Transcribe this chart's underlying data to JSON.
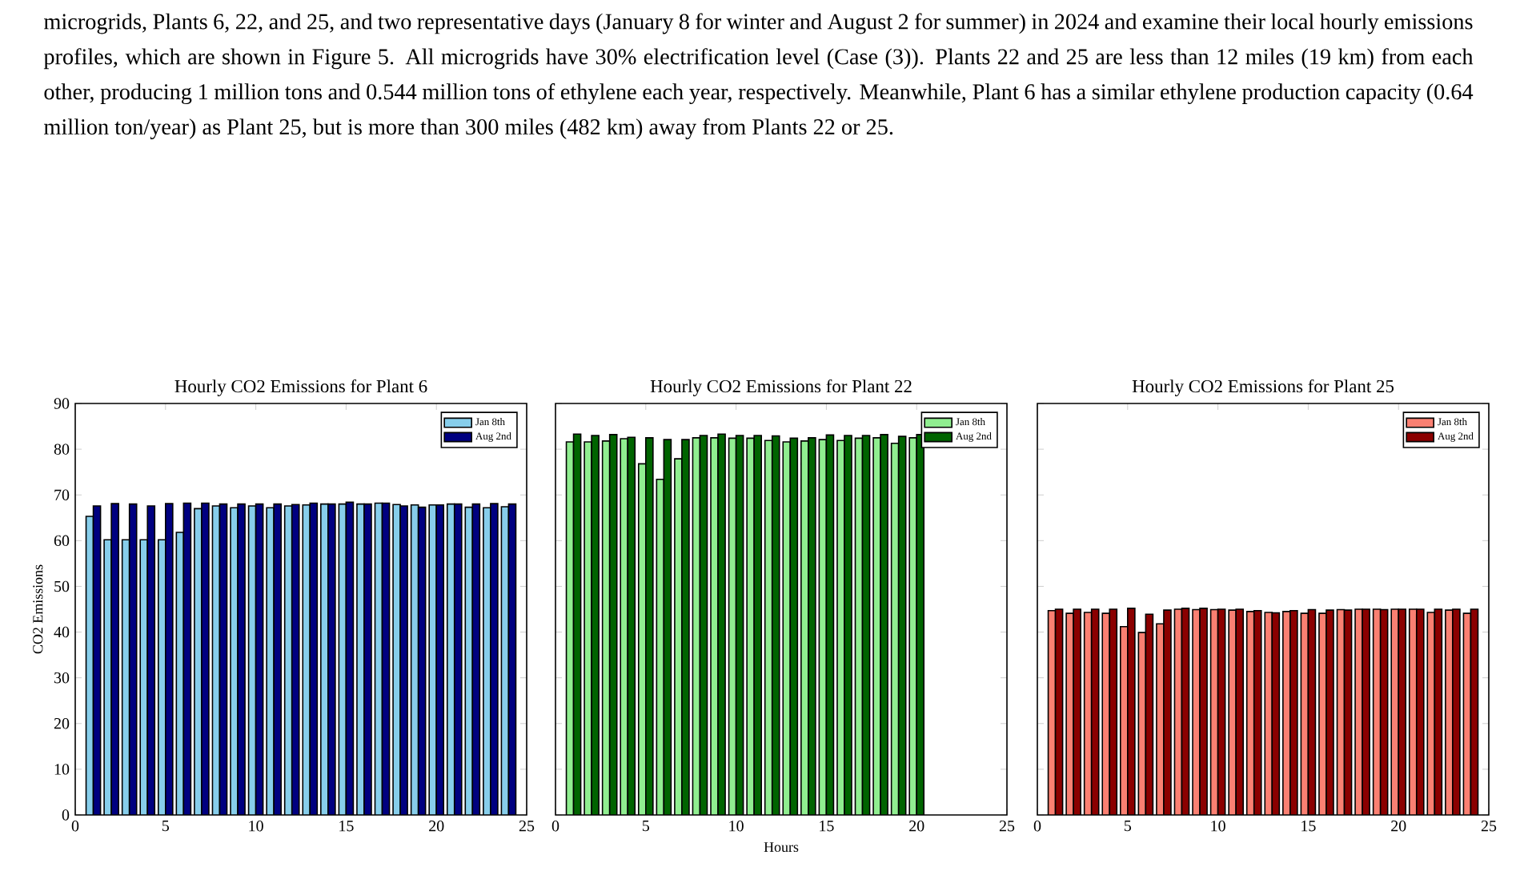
{
  "chart_data": [
    {
      "type": "bar",
      "title": "Hourly CO2 Emissions for Plant 6",
      "ylabel": "CO2 Emissions",
      "annotations": [
        "microgrids, Plants 6, 22, and 25, and two representative days (January 8 for winter and August 2 for summer) in 2024 and examine their local hourly emissions profiles, which are shown in Figure 5. All microgrids have 30% electrification level (Case (3)). Plants 22 and 25 are less than 12 miles (19 km) from each other, producing 1 million tons and 0.544 million tons of ethylene each year, respectively. Meanwhile, Plant 6 has a similar ethylene production capacity (0.64 million ton/year) as Plant 25, but is more than 300 miles (482 km) away from Plants 22 or 25."
      ],
      "x": [
        1,
        2,
        3,
        4,
        5,
        6,
        7,
        8,
        9,
        10,
        11,
        12,
        13,
        14,
        15,
        16,
        17,
        18,
        19,
        20,
        21,
        22,
        23,
        24
      ],
      "series": [
        {
          "name": "Jan 8th",
          "color": "#87ceeb",
          "values": [
            65.3,
            60.2,
            60.2,
            60.2,
            60.2,
            61.8,
            67.0,
            67.6,
            67.2,
            67.6,
            67.2,
            67.6,
            67.8,
            68.0,
            68.0,
            68.0,
            68.2,
            67.9,
            67.8,
            67.8,
            68.0,
            67.3,
            67.2,
            67.4
          ]
        },
        {
          "name": "Aug 2nd",
          "color": "#000080",
          "values": [
            67.6,
            68.1,
            68.0,
            67.6,
            68.1,
            68.2,
            68.2,
            68.0,
            68.0,
            68.0,
            68.0,
            67.9,
            68.2,
            68.0,
            68.4,
            68.0,
            68.2,
            67.6,
            67.3,
            67.8,
            68.0,
            68.0,
            68.1,
            68.0
          ]
        }
      ],
      "xlim": [
        0,
        25
      ],
      "xticks": [
        0,
        5,
        10,
        15,
        20,
        25
      ],
      "ylim": [
        0,
        90
      ],
      "yticks": [
        0,
        10,
        20,
        30,
        40,
        50,
        60,
        70,
        80,
        90
      ],
      "legend": "top right"
    },
    {
      "type": "bar",
      "title": "Hourly CO2 Emissions for Plant 22",
      "xlabel": "Hours",
      "series": [
        {
          "name": "Jan 8th",
          "color": "#90ee90",
          "x": [
            1,
            2,
            3,
            4,
            5,
            6,
            7,
            8,
            9,
            10,
            11,
            12,
            13,
            14,
            15,
            16,
            17,
            18,
            19,
            20
          ],
          "values": [
            81.6,
            81.6,
            81.8,
            82.3,
            76.8,
            73.4,
            77.9,
            82.5,
            82.5,
            82.4,
            82.4,
            81.9,
            81.6,
            81.8,
            82.1,
            81.9,
            82.4,
            82.5,
            81.3,
            82.5
          ]
        },
        {
          "name": "Aug 2nd",
          "color": "#006400",
          "x": [
            1,
            2,
            3,
            4,
            5,
            6,
            7,
            8,
            9,
            10,
            11,
            12,
            13,
            14,
            15,
            16,
            17,
            18,
            19,
            20
          ],
          "values": [
            83.3,
            83.0,
            83.2,
            82.6,
            82.5,
            82.1,
            82.1,
            83.0,
            83.3,
            83.0,
            83.0,
            82.9,
            82.4,
            82.5,
            83.1,
            83.0,
            83.0,
            83.2,
            82.8,
            83.2
          ]
        }
      ],
      "xlim": [
        0,
        25
      ],
      "xticks": [
        0,
        5,
        10,
        15,
        20,
        25
      ],
      "ylim": [
        0,
        90
      ],
      "yticks": [
        0,
        10,
        20,
        30,
        40,
        50,
        60,
        70,
        80,
        90
      ],
      "tick_labels": "x",
      "legend": "top right"
    },
    {
      "type": "bar",
      "title": "Hourly CO2 Emissions for Plant 25",
      "x": [
        1,
        2,
        3,
        4,
        5,
        6,
        7,
        8,
        9,
        10,
        11,
        12,
        13,
        14,
        15,
        16,
        17,
        18,
        19,
        20,
        21,
        22,
        23,
        24
      ],
      "series": [
        {
          "name": "Jan 8th",
          "color": "#fa8072",
          "values": [
            44.7,
            44.1,
            44.3,
            44.1,
            41.2,
            39.9,
            41.8,
            45.0,
            44.9,
            44.9,
            44.8,
            44.5,
            44.3,
            44.5,
            44.1,
            44.1,
            44.9,
            45.0,
            45.0,
            45.0,
            45.0,
            44.3,
            44.8,
            44.1
          ]
        },
        {
          "name": "Aug 2nd",
          "color": "#8b0000",
          "values": [
            45.0,
            45.0,
            45.0,
            45.0,
            45.2,
            43.9,
            44.8,
            45.2,
            45.2,
            45.0,
            45.0,
            44.7,
            44.2,
            44.7,
            44.9,
            44.8,
            44.8,
            45.0,
            44.9,
            45.0,
            45.0,
            45.0,
            45.0,
            45.0
          ]
        }
      ],
      "xlim": [
        0,
        25
      ],
      "xticks": [
        0,
        5,
        10,
        15,
        20,
        25
      ],
      "ylim": [
        0,
        90
      ],
      "yticks": [
        0,
        10,
        20,
        30,
        40,
        50,
        60,
        70,
        80,
        90
      ],
      "tick_labels": "x",
      "legend": "top right"
    }
  ]
}
